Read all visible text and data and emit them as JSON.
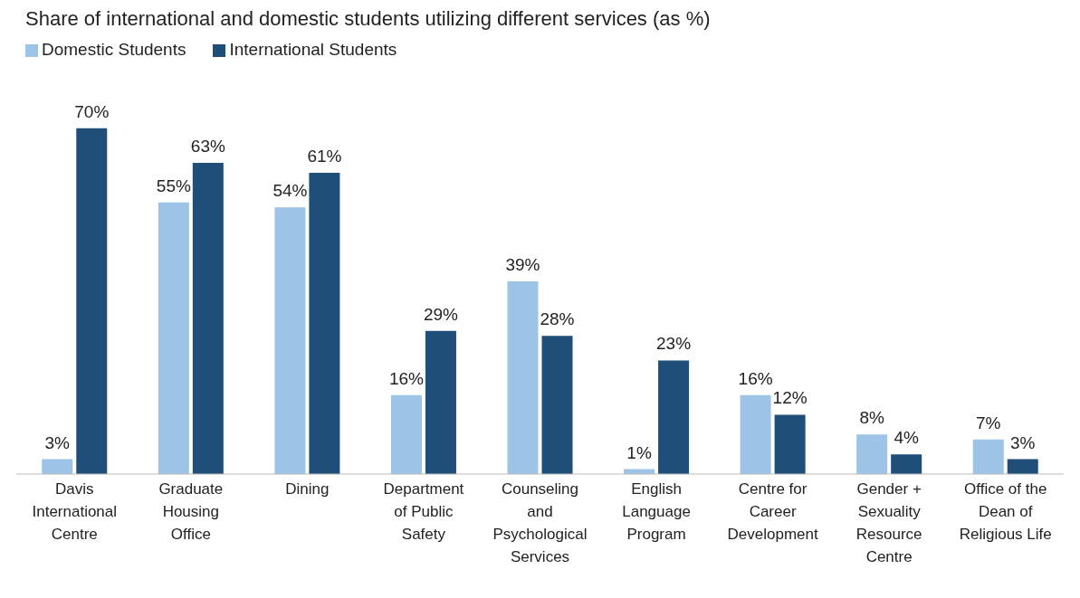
{
  "chart_data": {
    "type": "bar",
    "title": "Share of international and domestic students utilizing different services (as %)",
    "categories": [
      "Davis\nInternational\nCentre",
      "Graduate\nHousing\nOffice",
      "Dining",
      "Department\nof Public\nSafety",
      "Counseling\nand\nPsychological\nServices",
      "English\nLanguage\nProgram",
      "Centre for\nCareer\nDevelopment",
      "Gender +\nSexuality\nResource\nCentre",
      "Office of the\nDean of\nReligious Life"
    ],
    "series": [
      {
        "name": "Domestic Students",
        "color": "#9dc3e6",
        "values": [
          3,
          55,
          54,
          16,
          39,
          1,
          16,
          8,
          7
        ],
        "value_labels": [
          "3%",
          "55%",
          "54%",
          "16%",
          "39%",
          "1%",
          "16%",
          "8%",
          "7%"
        ]
      },
      {
        "name": "International Students",
        "color": "#1f4e79",
        "values": [
          70,
          63,
          61,
          29,
          28,
          23,
          12,
          4,
          3
        ],
        "value_labels": [
          "70%",
          "63%",
          "61%",
          "29%",
          "28%",
          "23%",
          "12%",
          "4%",
          "3%"
        ]
      }
    ],
    "legend": "top left",
    "grid": false
  }
}
